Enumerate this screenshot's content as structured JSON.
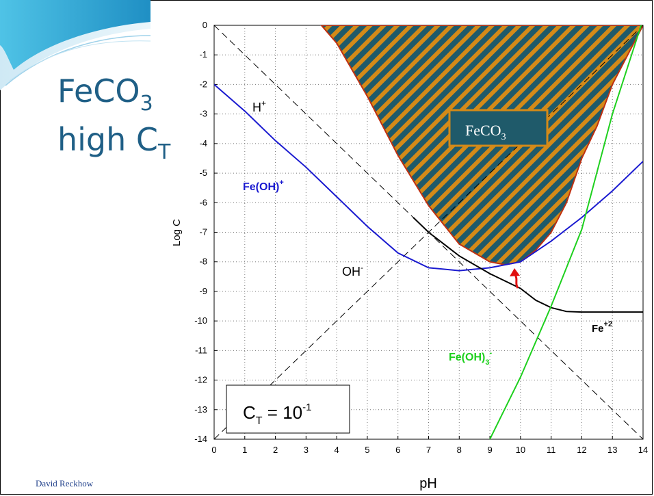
{
  "slide": {
    "title_main": "FeCO",
    "title_main_sub": "3",
    "title_line2": "high C",
    "title_line2_sub": "T",
    "footer": "David Reckhow"
  },
  "colors": {
    "title": "#1f5f86",
    "fe_oh_plus": "#1a1ad0",
    "fe_oh3_minus": "#1ed01e",
    "fe2": "#000000",
    "feco3_fill": "#1f5a6a",
    "feco3_hatch": "#d48a18",
    "arrow": "#e01010"
  },
  "chart_data": {
    "type": "line",
    "xlabel": "pH",
    "ylabel": "Log C",
    "xlim": [
      0,
      14
    ],
    "ylim": [
      -14,
      0
    ],
    "x_ticks": [
      "0",
      "1",
      "2",
      "3",
      "4",
      "5",
      "6",
      "7",
      "8",
      "9",
      "10",
      "11",
      "12",
      "13",
      "14"
    ],
    "y_ticks": [
      "0",
      "-1",
      "-2",
      "-3",
      "-4",
      "-5",
      "-6",
      "-7",
      "-8",
      "-9",
      "-10",
      "-11",
      "-12",
      "-13",
      "-14"
    ],
    "grid": true,
    "series": [
      {
        "name": "H+",
        "style": "dashed",
        "x": [
          0,
          14
        ],
        "y": [
          0,
          -14
        ]
      },
      {
        "name": "OH-",
        "style": "dashed",
        "x": [
          0,
          14
        ],
        "y": [
          -14,
          0
        ]
      },
      {
        "name": "Fe(OH)+",
        "x": [
          0,
          1,
          2,
          3,
          4,
          5,
          6,
          7,
          8,
          9,
          10,
          11,
          12,
          13,
          14
        ],
        "y": [
          -2.0,
          -2.9,
          -3.9,
          -4.8,
          -5.8,
          -6.8,
          -7.7,
          -8.2,
          -8.3,
          -8.2,
          -8.0,
          -7.3,
          -6.5,
          -5.6,
          -4.6
        ]
      },
      {
        "name": "Fe+2",
        "x": [
          6.5,
          7,
          8,
          9,
          10,
          10.5,
          11,
          11.5,
          12,
          13,
          14
        ],
        "y": [
          -6.5,
          -7.0,
          -7.8,
          -8.4,
          -8.9,
          -9.3,
          -9.55,
          -9.68,
          -9.7,
          -9.7,
          -9.7
        ]
      },
      {
        "name": "Fe(OH)3-",
        "x": [
          9,
          10,
          11,
          12,
          13,
          14
        ],
        "y": [
          -14,
          -11.9,
          -9.5,
          -6.9,
          -3.0,
          0.2
        ]
      },
      {
        "name": "FeCO3",
        "type": "area",
        "x": [
          3.5,
          4,
          5,
          6,
          7,
          8,
          9,
          9.5,
          10,
          10.5,
          11,
          11.5,
          12,
          12.5,
          13,
          13.5,
          14
        ],
        "y": [
          0,
          -0.6,
          -2.4,
          -4.4,
          -6.1,
          -7.4,
          -8.0,
          -8.1,
          -8.0,
          -7.6,
          -7.0,
          -6.0,
          -4.5,
          -3.4,
          -2.0,
          -1.0,
          0
        ]
      }
    ],
    "annotations": {
      "h_plus": "H",
      "h_plus_sup": "+",
      "oh_minus": "OH",
      "oh_minus_sup": "-",
      "fe_oh_plus": "Fe(OH)",
      "fe_oh_plus_sup": "+",
      "fe2": "Fe",
      "fe2_sup": "+2",
      "fe_oh3": "Fe(OH)",
      "fe_oh3_sub": "3",
      "fe_oh3_sup": "-",
      "feco3": "FeCO",
      "feco3_sub": "3",
      "ct": "C",
      "ct_sub": "T",
      "ct_eq": " = 10",
      "ct_sup": "-1"
    }
  }
}
